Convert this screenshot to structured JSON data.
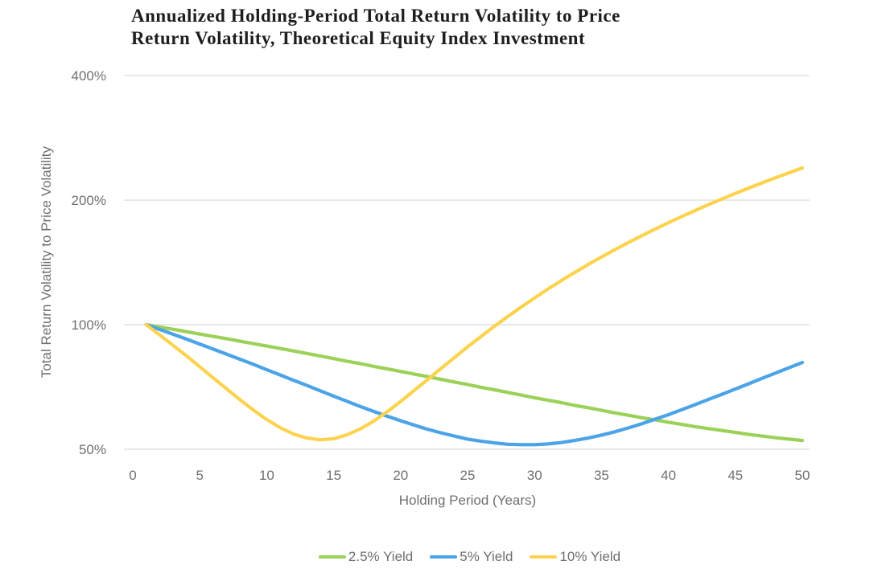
{
  "title": {
    "line1": "Annualized Holding-Period Total Return Volatility to Price",
    "line2": "Return Volatility, Theoretical Equity Index Investment"
  },
  "colors": {
    "green": "#9cd158",
    "blue": "#4ba3e8",
    "yellow": "#fbd34e",
    "grid": "#e0e0e0",
    "axis_text": "#6f6f6f",
    "title_text": "#1f1e1c"
  },
  "chart_data": {
    "type": "line",
    "title": "Annualized Holding-Period Total Return Volatility to Price Return Volatility, Theoretical Equity Index Investment",
    "xlabel": "Holding Period (Years)",
    "ylabel": "Total Return Volatility to Price Volatility",
    "x_ticks": [
      0,
      5,
      10,
      15,
      20,
      25,
      30,
      35,
      40,
      45,
      50
    ],
    "xlim": [
      0,
      50
    ],
    "y_scale": "log2",
    "y_ticks": [
      {
        "label": "400%",
        "value": 400
      },
      {
        "label": "200%",
        "value": 200
      },
      {
        "label": "100%",
        "value": 100
      },
      {
        "label": "50%",
        "value": 50
      }
    ],
    "grid": "horizontal",
    "legend_position": "bottom",
    "x_years": [
      1,
      2,
      3,
      4,
      5,
      6,
      7,
      8,
      9,
      10,
      11,
      12,
      13,
      14,
      15,
      16,
      17,
      18,
      19,
      20,
      21,
      22,
      23,
      24,
      25,
      26,
      27,
      28,
      29,
      30,
      31,
      32,
      33,
      34,
      35,
      36,
      37,
      38,
      39,
      40,
      41,
      42,
      43,
      44,
      45,
      46,
      47,
      48,
      49,
      50
    ],
    "series": [
      {
        "name": "2.5% Yield",
        "color_key": "green",
        "values": [
          100.0,
          98.7,
          97.5,
          96.2,
          94.9,
          93.7,
          92.5,
          91.2,
          90.0,
          88.8,
          87.6,
          86.4,
          85.2,
          84.0,
          82.8,
          81.6,
          80.5,
          79.3,
          78.2,
          77.1,
          76.0,
          74.9,
          73.8,
          72.7,
          71.7,
          70.6,
          69.6,
          68.6,
          67.6,
          66.6,
          65.7,
          64.8,
          63.8,
          63.0,
          62.1,
          61.2,
          60.4,
          59.6,
          58.9,
          58.1,
          57.4,
          56.7,
          56.1,
          55.5,
          54.9,
          54.3,
          53.8,
          53.3,
          52.9,
          52.5
        ]
      },
      {
        "name": "5% Yield",
        "color_key": "blue",
        "values": [
          100.0,
          97.4,
          94.8,
          92.3,
          89.8,
          87.3,
          84.9,
          82.5,
          80.2,
          77.8,
          75.6,
          73.4,
          71.3,
          69.2,
          67.2,
          65.3,
          63.4,
          61.7,
          60.1,
          58.6,
          57.2,
          55.9,
          54.8,
          53.8,
          52.9,
          52.3,
          51.8,
          51.4,
          51.3,
          51.3,
          51.5,
          51.9,
          52.5,
          53.2,
          54.1,
          55.1,
          56.3,
          57.6,
          59.1,
          60.6,
          62.3,
          64.1,
          66.0,
          67.9,
          69.9,
          72.0,
          74.2,
          76.4,
          78.7,
          81.0
        ]
      },
      {
        "name": "10% Yield",
        "color_key": "yellow",
        "values": [
          100.0,
          94.5,
          89.2,
          84.1,
          79.1,
          74.4,
          70.0,
          65.9,
          62.2,
          59.0,
          56.4,
          54.4,
          53.2,
          52.7,
          53.0,
          54.2,
          56.0,
          58.5,
          61.6,
          65.2,
          69.3,
          73.6,
          78.3,
          83.2,
          88.4,
          93.6,
          99.1,
          104.6,
          110.3,
          116.0,
          121.9,
          127.8,
          133.7,
          139.7,
          145.7,
          151.8,
          157.9,
          164.0,
          170.2,
          176.4,
          182.6,
          188.8,
          195.1,
          201.3,
          207.6,
          213.9,
          220.2,
          226.5,
          232.8,
          239.2
        ]
      }
    ]
  }
}
